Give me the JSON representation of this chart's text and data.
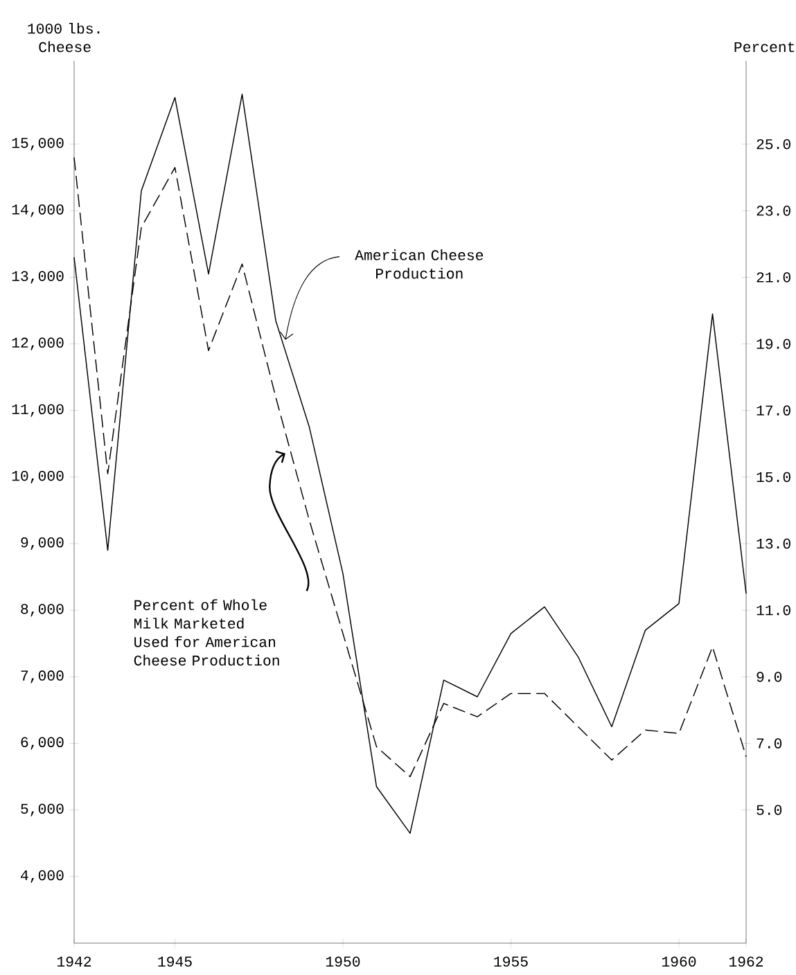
{
  "chart_data": {
    "type": "line",
    "x": [
      1942,
      1943,
      1944,
      1945,
      1946,
      1947,
      1948,
      1949,
      1950,
      1951,
      1952,
      1953,
      1954,
      1955,
      1956,
      1957,
      1958,
      1959,
      1960,
      1961,
      1962
    ],
    "series": [
      {
        "color": "#000000",
        "line_style": "solid",
        "values": [
          13300,
          8900,
          14300,
          15700,
          13050,
          15750,
          12350,
          10750,
          8550,
          5350,
          4650,
          6950,
          6700,
          7650,
          8050,
          7300,
          6250,
          7700,
          8100,
          12450,
          8250
        ]
      },
      {
        "color": "#000000",
        "line_style": "dashed",
        "axis": "y2",
        "values": [
          24.6,
          15.1,
          22.5,
          24.3,
          18.8,
          21.4,
          17.4,
          13.7,
          10.3,
          6.9,
          6.0,
          8.2,
          7.8,
          8.5,
          8.5,
          7.5,
          6.5,
          7.4,
          7.3,
          9.9,
          6.6
        ]
      }
    ],
    "ylabel": "1000 lbs. Cheese",
    "y2label": "Percent",
    "xlim": [
      1942,
      1962
    ],
    "xticks": [
      1942,
      1945,
      1950,
      1955,
      1960,
      1962
    ],
    "ylim": [
      3000,
      16250
    ],
    "yticks": [
      {
        "value": 4000,
        "label": "4,000"
      },
      {
        "value": 5000,
        "label": "5,000"
      },
      {
        "value": 6000,
        "label": "6,000"
      },
      {
        "value": 7000,
        "label": "7,000"
      },
      {
        "value": 8000,
        "label": "8,000"
      },
      {
        "value": 9000,
        "label": "9,000"
      },
      {
        "value": 10000,
        "label": "10,000"
      },
      {
        "value": 11000,
        "label": "11,000"
      },
      {
        "value": 12000,
        "label": "12,000"
      },
      {
        "value": 13000,
        "label": "13,000"
      },
      {
        "value": 14000,
        "label": "14,000"
      },
      {
        "value": 15000,
        "label": "15,000"
      }
    ],
    "y2lim": [
      1,
      27.5
    ],
    "y2ticks": [
      {
        "value": 5,
        "label": "5.0"
      },
      {
        "value": 7,
        "label": "7.0"
      },
      {
        "value": 9,
        "label": "9.0"
      },
      {
        "value": 11,
        "label": "11.0"
      },
      {
        "value": 13,
        "label": "13.0"
      },
      {
        "value": 15,
        "label": "15.0"
      },
      {
        "value": 17,
        "label": "17.0"
      },
      {
        "value": 19,
        "label": "19.0"
      },
      {
        "value": 21,
        "label": "21.0"
      },
      {
        "value": 23,
        "label": "23.0"
      },
      {
        "value": 25,
        "label": "25.0"
      }
    ],
    "annotations": [
      "American Cheese Production",
      "Percent of Whole Milk Marketed Used for American Cheese Production"
    ]
  }
}
